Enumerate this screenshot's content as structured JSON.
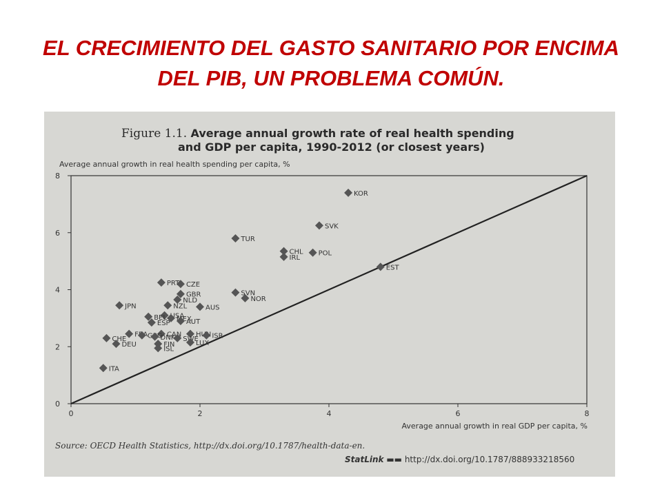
{
  "slide": {
    "title_line1": "EL CRECIMIENTO DEL GASTO SANITARIO POR ENCIMA",
    "title_line2": "DEL PIB, UN PROBLEMA COMÚN."
  },
  "figure": {
    "label": "Figure 1.1.",
    "title_line1": "Average annual growth rate of real health spending",
    "title_line2": "and GDP per capita, 1990-2012 (or closest years)",
    "source": "Source: OECD Health Statistics, http://dx.doi.org/10.1787/health-data-en.",
    "statlink_name": "StatLink",
    "statlink_url": "http://dx.doi.org/10.1787/888933218560"
  },
  "chart_data": {
    "type": "scatter",
    "title": "Average annual growth rate of real health spending and GDP per capita, 1990-2012 (or closest years)",
    "xlabel": "Average annual growth in real GDP per capita, %",
    "ylabel": "Average annual growth in real health spending per capita, %",
    "xlim": [
      0,
      8
    ],
    "ylim": [
      0,
      8
    ],
    "xticks": [
      0,
      2,
      4,
      6,
      8
    ],
    "yticks": [
      0,
      2,
      4,
      6,
      8
    ],
    "grid": false,
    "reference_line": {
      "from": [
        0,
        0
      ],
      "to": [
        8,
        8
      ]
    },
    "marker_color": "#555555",
    "points": [
      {
        "label": "KOR",
        "x": 4.3,
        "y": 7.4
      },
      {
        "label": "SVK",
        "x": 3.85,
        "y": 6.25
      },
      {
        "label": "TUR",
        "x": 2.55,
        "y": 5.8
      },
      {
        "label": "CHL",
        "x": 3.3,
        "y": 5.35
      },
      {
        "label": "IRL",
        "x": 3.3,
        "y": 5.15
      },
      {
        "label": "POL",
        "x": 3.75,
        "y": 5.3
      },
      {
        "label": "EST",
        "x": 4.8,
        "y": 4.8
      },
      {
        "label": "PRT",
        "x": 1.4,
        "y": 4.25
      },
      {
        "label": "CZE",
        "x": 1.7,
        "y": 4.2
      },
      {
        "label": "SVN",
        "x": 2.55,
        "y": 3.9
      },
      {
        "label": "NOR",
        "x": 2.7,
        "y": 3.7
      },
      {
        "label": "GBR",
        "x": 1.7,
        "y": 3.85
      },
      {
        "label": "NLD",
        "x": 1.65,
        "y": 3.65
      },
      {
        "label": "NZL",
        "x": 1.5,
        "y": 3.45
      },
      {
        "label": "AUS",
        "x": 2.0,
        "y": 3.4
      },
      {
        "label": "JPN",
        "x": 0.75,
        "y": 3.45
      },
      {
        "label": "USA",
        "x": 1.45,
        "y": 3.1
      },
      {
        "label": "BEL",
        "x": 1.2,
        "y": 3.05
      },
      {
        "label": "MEX",
        "x": 1.55,
        "y": 3.0
      },
      {
        "label": "ESP",
        "x": 1.25,
        "y": 2.85
      },
      {
        "label": "AUT",
        "x": 1.7,
        "y": 2.9
      },
      {
        "label": "FRA",
        "x": 0.9,
        "y": 2.45
      },
      {
        "label": "CAN",
        "x": 1.4,
        "y": 2.45
      },
      {
        "label": "CHE",
        "x": 0.55,
        "y": 2.3
      },
      {
        "label": "HUN",
        "x": 1.85,
        "y": 2.45
      },
      {
        "label": "GRC",
        "x": 1.1,
        "y": 2.4
      },
      {
        "label": "DNK",
        "x": 1.3,
        "y": 2.35
      },
      {
        "label": "SWE",
        "x": 1.65,
        "y": 2.3
      },
      {
        "label": "ISR",
        "x": 2.1,
        "y": 2.4
      },
      {
        "label": "FIN",
        "x": 1.35,
        "y": 2.1
      },
      {
        "label": "LUX",
        "x": 1.85,
        "y": 2.15
      },
      {
        "label": "DEU",
        "x": 0.7,
        "y": 2.1
      },
      {
        "label": "ISL",
        "x": 1.35,
        "y": 1.95
      },
      {
        "label": "ITA",
        "x": 0.5,
        "y": 1.25
      }
    ]
  }
}
